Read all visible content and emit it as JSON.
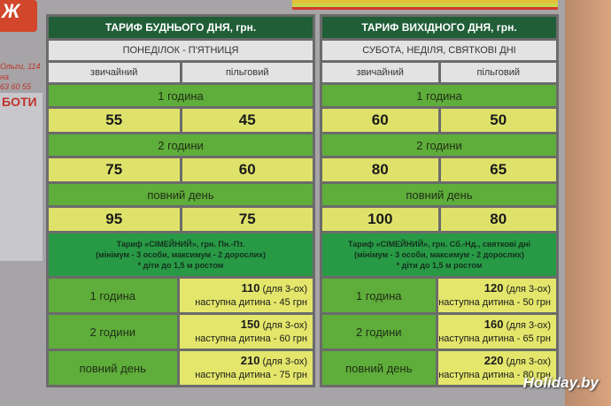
{
  "background": {
    "logo_text": "Ж",
    "address_line1": "Ольги, 114",
    "address_line2": "на",
    "phone": "63 60 55",
    "hours_fragment": "БОТИ",
    "watermark": "Holiday.by"
  },
  "weekday": {
    "title": "ТАРИФ БУДНЬОГО ДНЯ, грн.",
    "days": "ПОНЕДІЛОК - П'ЯТНИЦЯ",
    "col_regular": "звичайний",
    "col_discount": "пільговий",
    "rows": [
      {
        "label": "1 година",
        "regular": "55",
        "discount": "45"
      },
      {
        "label": "2 години",
        "regular": "75",
        "discount": "60"
      },
      {
        "label": "повний день",
        "regular": "95",
        "discount": "75"
      }
    ],
    "family": {
      "line1": "Тариф «СІМЕЙНИЙ», грн. Пн.-Пт.",
      "line2": "(мінімум - 3 особи, максимум - 2 дорослих)",
      "line3": "* діти до 1,5 м ростом",
      "rows": [
        {
          "label": "1 година",
          "price": "110",
          "note": "(для 3-ох)",
          "extra": "наступна дитина - 45 грн"
        },
        {
          "label": "2 години",
          "price": "150",
          "note": "(для 3-ох)",
          "extra": "наступна дитина - 60 грн"
        },
        {
          "label": "повний день",
          "price": "210",
          "note": "(для 3-ох)",
          "extra": "наступна дитина - 75 грн"
        }
      ]
    }
  },
  "weekend": {
    "title": "ТАРИФ ВИХІДНОГО ДНЯ, грн.",
    "days": "СУБОТА, НЕДІЛЯ, СВЯТКОВІ ДНІ",
    "col_regular": "звичайний",
    "col_discount": "пільговий",
    "rows": [
      {
        "label": "1 година",
        "regular": "60",
        "discount": "50"
      },
      {
        "label": "2 години",
        "regular": "80",
        "discount": "65"
      },
      {
        "label": "повний день",
        "regular": "100",
        "discount": "80"
      }
    ],
    "family": {
      "line1": "Тариф «СІМЕЙНИЙ», грн. Сб.-Нд., святкові дні",
      "line2": "(мінімум - 3 особи, максимум - 2 дорослих)",
      "line3": "* діти до 1,5 м ростом",
      "rows": [
        {
          "label": "1 година",
          "price": "120",
          "note": "(для 3-ох)",
          "extra": "наступна дитина - 50 грн"
        },
        {
          "label": "2 години",
          "price": "160",
          "note": "(для 3-ох)",
          "extra": "наступна дитина - 65 грн"
        },
        {
          "label": "повний день",
          "price": "220",
          "note": "(для 3-ох)",
          "extra": "наступна дитина - 80 грн"
        }
      ]
    }
  }
}
